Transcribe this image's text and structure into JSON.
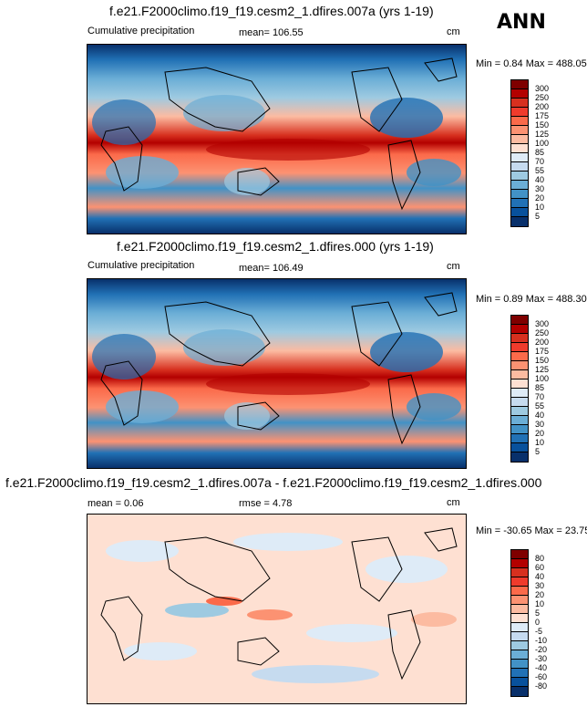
{
  "season": "ANN",
  "panels": [
    {
      "title": "f.e21.F2000climo.f19_f19.cesm2_1.dfires.007a (yrs 1-19)",
      "left_label": "Cumulative precipitation",
      "center_label": "mean= 106.55",
      "units": "cm",
      "minmax": "Min =  0.84 Max = 488.05"
    },
    {
      "title": "f.e21.F2000climo.f19_f19.cesm2_1.dfires.000 (yrs 1-19)",
      "left_label": "Cumulative precipitation",
      "center_label": "mean= 106.49",
      "units": "cm",
      "minmax": "Min =  0.89 Max = 488.30"
    },
    {
      "title": "f.e21.F2000climo.f19_f19.cesm2_1.dfires.007a - f.e21.F2000climo.f19_f19.cesm2_1.dfires.000",
      "left_label": "mean =  0.06",
      "center_label": "rmse =  4.78",
      "units": "cm",
      "minmax": "Min = -30.65 Max = 23.75"
    }
  ],
  "colorbars": {
    "field": {
      "labels": [
        "300",
        "250",
        "200",
        "175",
        "150",
        "125",
        "100",
        "85",
        "70",
        "55",
        "40",
        "30",
        "20",
        "10",
        "5"
      ],
      "colors": [
        "#7f0000",
        "#b30000",
        "#d7301f",
        "#ef3b2c",
        "#fb6a4a",
        "#fc9272",
        "#fcbba1",
        "#fee0d2",
        "#deebf7",
        "#c6dbef",
        "#9ecae1",
        "#6baed6",
        "#4292c6",
        "#2171b5",
        "#08519c",
        "#08306b"
      ]
    },
    "diff": {
      "labels": [
        "80",
        "60",
        "40",
        "30",
        "20",
        "10",
        "5",
        "0",
        "-5",
        "-10",
        "-20",
        "-30",
        "-40",
        "-60",
        "-80"
      ],
      "colors": [
        "#7f0000",
        "#b30000",
        "#d7301f",
        "#ef3b2c",
        "#fb6a4a",
        "#fc9272",
        "#fcbba1",
        "#fee0d2",
        "#deebf7",
        "#c6dbef",
        "#9ecae1",
        "#6baed6",
        "#4292c6",
        "#2171b5",
        "#08519c",
        "#08306b"
      ]
    }
  }
}
